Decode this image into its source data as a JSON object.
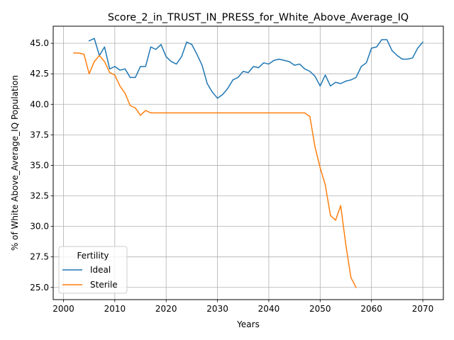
{
  "chart_data": {
    "type": "line",
    "title": "Score_2_in_TRUST_IN_PRESS_for_White_Above_Average_IQ",
    "xlabel": "Years",
    "ylabel": "% of White Above_Average_IQ Population",
    "xlim": [
      1998,
      2074
    ],
    "ylim": [
      24.0,
      46.4
    ],
    "xticks": [
      2000,
      2010,
      2020,
      2030,
      2040,
      2050,
      2060,
      2070
    ],
    "xtick_labels": [
      "2000",
      "2010",
      "2020",
      "2030",
      "2040",
      "2050",
      "2060",
      "2070"
    ],
    "yticks": [
      25.0,
      27.5,
      30.0,
      32.5,
      35.0,
      37.5,
      40.0,
      42.5,
      45.0
    ],
    "ytick_labels": [
      "25.0",
      "27.5",
      "30.0",
      "32.5",
      "35.0",
      "37.5",
      "40.0",
      "42.5",
      "45.0"
    ],
    "grid": true,
    "legend": {
      "title": "Fertility",
      "position": "lower-left"
    },
    "series": [
      {
        "name": "Ideal",
        "color": "#1f77b4",
        "x": [
          2005,
          2006,
          2007,
          2008,
          2009,
          2010,
          2011,
          2012,
          2013,
          2014,
          2015,
          2016,
          2017,
          2018,
          2019,
          2020,
          2021,
          2022,
          2023,
          2024,
          2025,
          2026,
          2027,
          2028,
          2029,
          2030,
          2031,
          2032,
          2033,
          2034,
          2035,
          2036,
          2037,
          2038,
          2039,
          2040,
          2041,
          2042,
          2043,
          2044,
          2045,
          2046,
          2047,
          2048,
          2049,
          2050,
          2051,
          2052,
          2053,
          2054,
          2055,
          2056,
          2057,
          2058,
          2059,
          2060,
          2061,
          2062,
          2063,
          2064,
          2065,
          2066,
          2067,
          2068,
          2069,
          2070
        ],
        "y": [
          45.2,
          45.4,
          44.0,
          44.7,
          42.9,
          43.1,
          42.8,
          42.9,
          42.2,
          42.2,
          43.1,
          43.1,
          44.7,
          44.5,
          44.9,
          43.9,
          43.5,
          43.3,
          43.9,
          45.1,
          44.9,
          44.1,
          43.2,
          41.7,
          41.0,
          40.5,
          40.8,
          41.3,
          42.0,
          42.2,
          42.7,
          42.6,
          43.1,
          43.0,
          43.4,
          43.3,
          43.6,
          43.7,
          43.6,
          43.5,
          43.2,
          43.3,
          42.9,
          42.7,
          42.3,
          41.5,
          42.4,
          41.5,
          41.8,
          41.7,
          41.9,
          42.0,
          42.2,
          43.1,
          43.4,
          44.6,
          44.7,
          45.3,
          45.3,
          44.4,
          44.0,
          43.7,
          43.7,
          43.8,
          44.6,
          45.1
        ]
      },
      {
        "name": "Sterile",
        "color": "#ff7f0e",
        "x": [
          2002,
          2003,
          2004,
          2005,
          2006,
          2007,
          2008,
          2009,
          2010,
          2011,
          2012,
          2013,
          2014,
          2015,
          2016,
          2017,
          2018,
          2019,
          2020,
          2021,
          2022,
          2023,
          2024,
          2025,
          2026,
          2027,
          2028,
          2029,
          2030,
          2031,
          2032,
          2033,
          2034,
          2035,
          2036,
          2037,
          2038,
          2039,
          2040,
          2041,
          2042,
          2043,
          2044,
          2045,
          2046,
          2047,
          2048,
          2049,
          2050,
          2051,
          2052,
          2053,
          2054,
          2055,
          2056,
          2057
        ],
        "y": [
          44.2,
          44.2,
          44.1,
          42.5,
          43.5,
          44.0,
          43.5,
          42.6,
          42.4,
          41.5,
          40.9,
          39.9,
          39.7,
          39.1,
          39.5,
          39.3,
          39.3,
          39.3,
          39.3,
          39.3,
          39.3,
          39.3,
          39.3,
          39.3,
          39.3,
          39.3,
          39.3,
          39.3,
          39.3,
          39.3,
          39.3,
          39.3,
          39.3,
          39.3,
          39.3,
          39.3,
          39.3,
          39.3,
          39.3,
          39.3,
          39.3,
          39.3,
          39.3,
          39.3,
          39.3,
          39.3,
          39.0,
          36.5,
          34.8,
          33.4,
          30.9,
          30.5,
          31.7,
          28.5,
          25.8,
          25.0
        ]
      }
    ]
  }
}
